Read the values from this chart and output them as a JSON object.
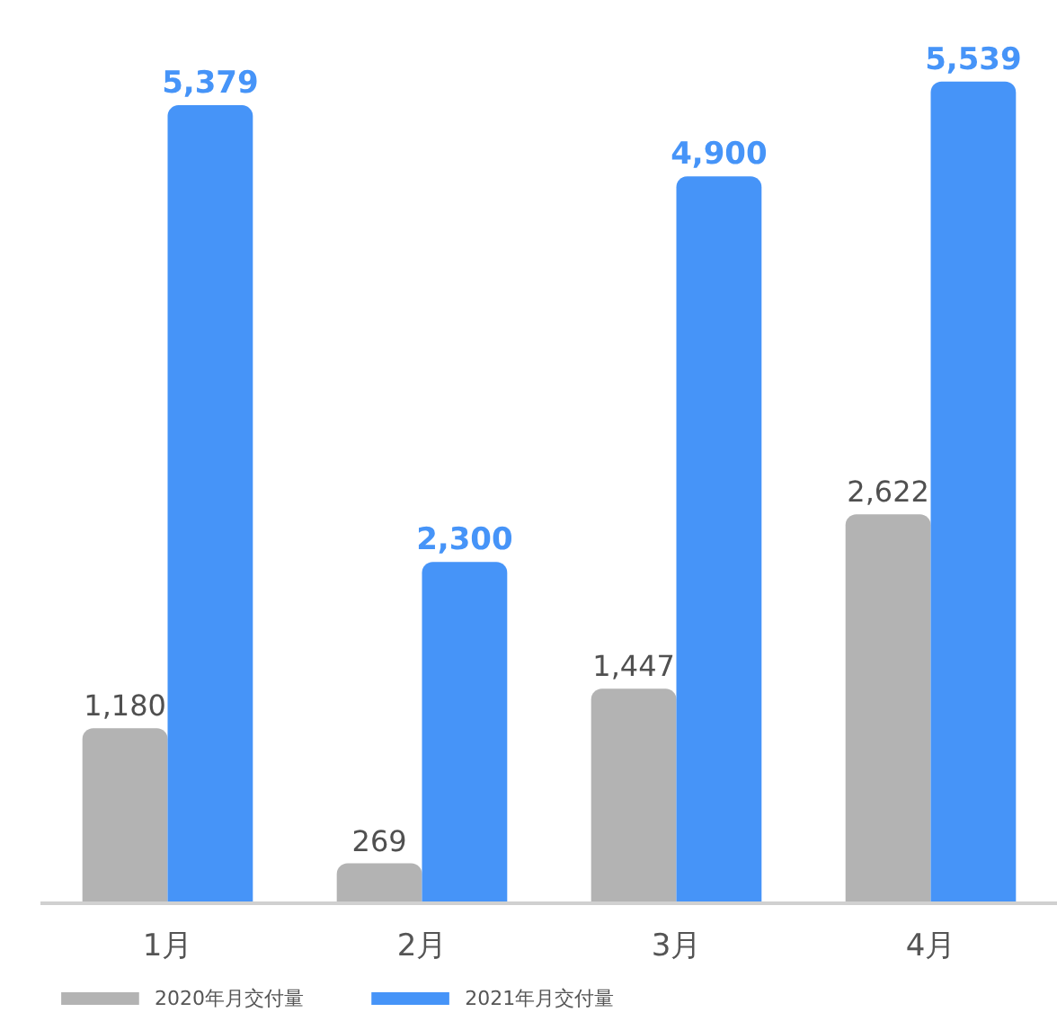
{
  "chart_data": {
    "type": "bar",
    "categories": [
      "1月",
      "2月",
      "3月",
      "4月"
    ],
    "series": [
      {
        "name": "2020年月交付量",
        "color": "#b3b3b3",
        "values": [
          1180,
          269,
          1447,
          2622
        ],
        "value_labels": [
          "1,180",
          "269",
          "1,447",
          "2,622"
        ]
      },
      {
        "name": "2021年月交付量",
        "color": "#4694f8",
        "values": [
          5379,
          2300,
          4900,
          5539
        ],
        "value_labels": [
          "5,379",
          "2,300",
          "4,900",
          "5,539"
        ]
      }
    ],
    "legend": "bottom left"
  }
}
